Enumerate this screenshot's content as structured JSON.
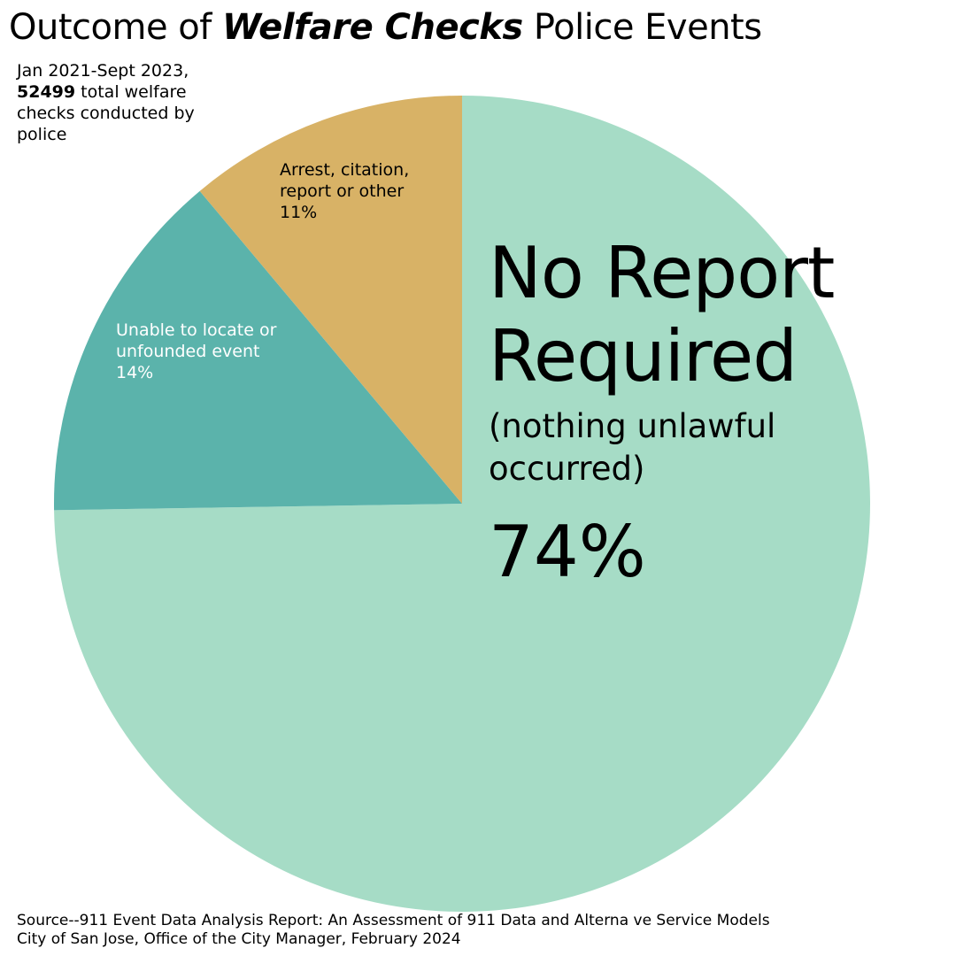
{
  "title": {
    "prefix": "Outcome of ",
    "emphasis": "Welfare Checks",
    "suffix": " Police Events"
  },
  "subtitle": {
    "line1": "Jan 2021-Sept 2023,",
    "count": "52499",
    "rest": " total welfare checks conducted by police"
  },
  "chart_data": {
    "type": "pie",
    "title": "Outcome of Welfare Checks Police Events",
    "slices": [
      {
        "name": "No Report Required",
        "note": "(nothing unlawful occurred)",
        "value": 74,
        "label": "74%",
        "color": "#a6dcc6"
      },
      {
        "name": "Unable to locate or unfounded event",
        "value": 14,
        "label": "14%",
        "color": "#5bb3ab"
      },
      {
        "name": "Arrest, citation, report or other",
        "value": 11,
        "label": "11%",
        "color": "#d8b266"
      }
    ],
    "start": "top, clockwise"
  },
  "source": {
    "line1": "Source--911 Event Data Analysis Report: An Assessment of 911 Data and Alterna ve Service Models",
    "line2": "City of San Jose, Office of the City Manager, February 2024"
  }
}
